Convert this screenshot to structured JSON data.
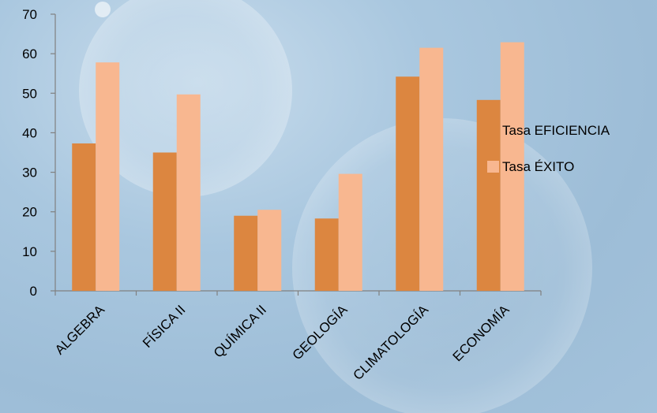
{
  "chart_data": {
    "type": "bar",
    "categories": [
      "ALGEBRA",
      "FÍSICA II",
      "QUÍMICA II",
      "GEOLOGÍA",
      "CLIMATOLOGÍA",
      "ECONOMÍA"
    ],
    "series": [
      {
        "name": "Tasa EFICIENCIA",
        "values": [
          37.3,
          35.0,
          19.0,
          18.3,
          54.2,
          48.3
        ],
        "color": "#dc8640"
      },
      {
        "name": "Tasa ÉXITO",
        "values": [
          57.8,
          49.7,
          20.5,
          29.6,
          61.5,
          62.9
        ],
        "color": "#f8b790"
      }
    ],
    "y_ticks": [
      "0",
      "10",
      "20",
      "30",
      "40",
      "50",
      "60",
      "70"
    ],
    "ylim": [
      0,
      70
    ],
    "title": "",
    "xlabel": "",
    "ylabel": "",
    "grid": false,
    "legend_position": "right",
    "axis_color": "#808080",
    "background_color": "#a9c7df"
  }
}
